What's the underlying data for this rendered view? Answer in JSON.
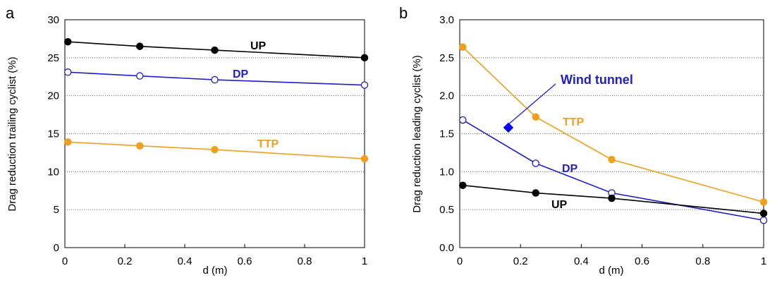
{
  "chart_data": [
    {
      "panel": "a",
      "type": "line",
      "xlabel": "d (m)",
      "ylabel": "Drag reduction trailing cyclist (%)",
      "xlim": [
        0,
        1
      ],
      "ylim": [
        0,
        30
      ],
      "x_ticks": [
        "0",
        "0.2",
        "0.4",
        "0.6",
        "0.8",
        "1"
      ],
      "y_ticks": [
        "0",
        "5",
        "10",
        "15",
        "20",
        "25",
        "30"
      ],
      "grid": "horizontal dotted",
      "x": [
        0.01,
        0.25,
        0.5,
        1.0
      ],
      "series": [
        {
          "name": "UP",
          "values": [
            27.1,
            26.5,
            26.0,
            25.0
          ],
          "color": "#000000",
          "marker": "filled-circle"
        },
        {
          "name": "DP",
          "values": [
            23.1,
            22.6,
            22.1,
            21.4
          ],
          "color": "#1f1fc8",
          "marker": "open-circle"
        },
        {
          "name": "TTP",
          "values": [
            13.9,
            13.4,
            12.9,
            11.7
          ],
          "color": "#f0a020",
          "marker": "filled-circle"
        }
      ]
    },
    {
      "panel": "b",
      "type": "line",
      "xlabel": "d (m)",
      "ylabel": "Drag reduction leading cyclist (%)",
      "xlim": [
        0,
        1
      ],
      "ylim": [
        0,
        3
      ],
      "x_ticks": [
        "0",
        "0.2",
        "0.4",
        "0.6",
        "0.8",
        "1"
      ],
      "y_ticks": [
        "0.0",
        "0.5",
        "1.0",
        "1.5",
        "2.0",
        "2.5",
        "3.0"
      ],
      "grid": "horizontal dotted",
      "x": [
        0.01,
        0.25,
        0.5,
        1.0
      ],
      "series": [
        {
          "name": "TTP",
          "values": [
            2.64,
            1.72,
            1.16,
            0.6
          ],
          "color": "#f0a020",
          "marker": "filled-circle"
        },
        {
          "name": "DP",
          "values": [
            1.68,
            1.11,
            0.72,
            0.36
          ],
          "color": "#1f1fc8",
          "marker": "open-circle"
        },
        {
          "name": "UP",
          "values": [
            0.82,
            0.72,
            0.65,
            0.45
          ],
          "color": "#000000",
          "marker": "filled-circle"
        }
      ],
      "annotation": {
        "label": "Wind tunnel",
        "x": 0.16,
        "y": 1.58,
        "color": "#0000ff",
        "marker": "diamond"
      }
    }
  ]
}
